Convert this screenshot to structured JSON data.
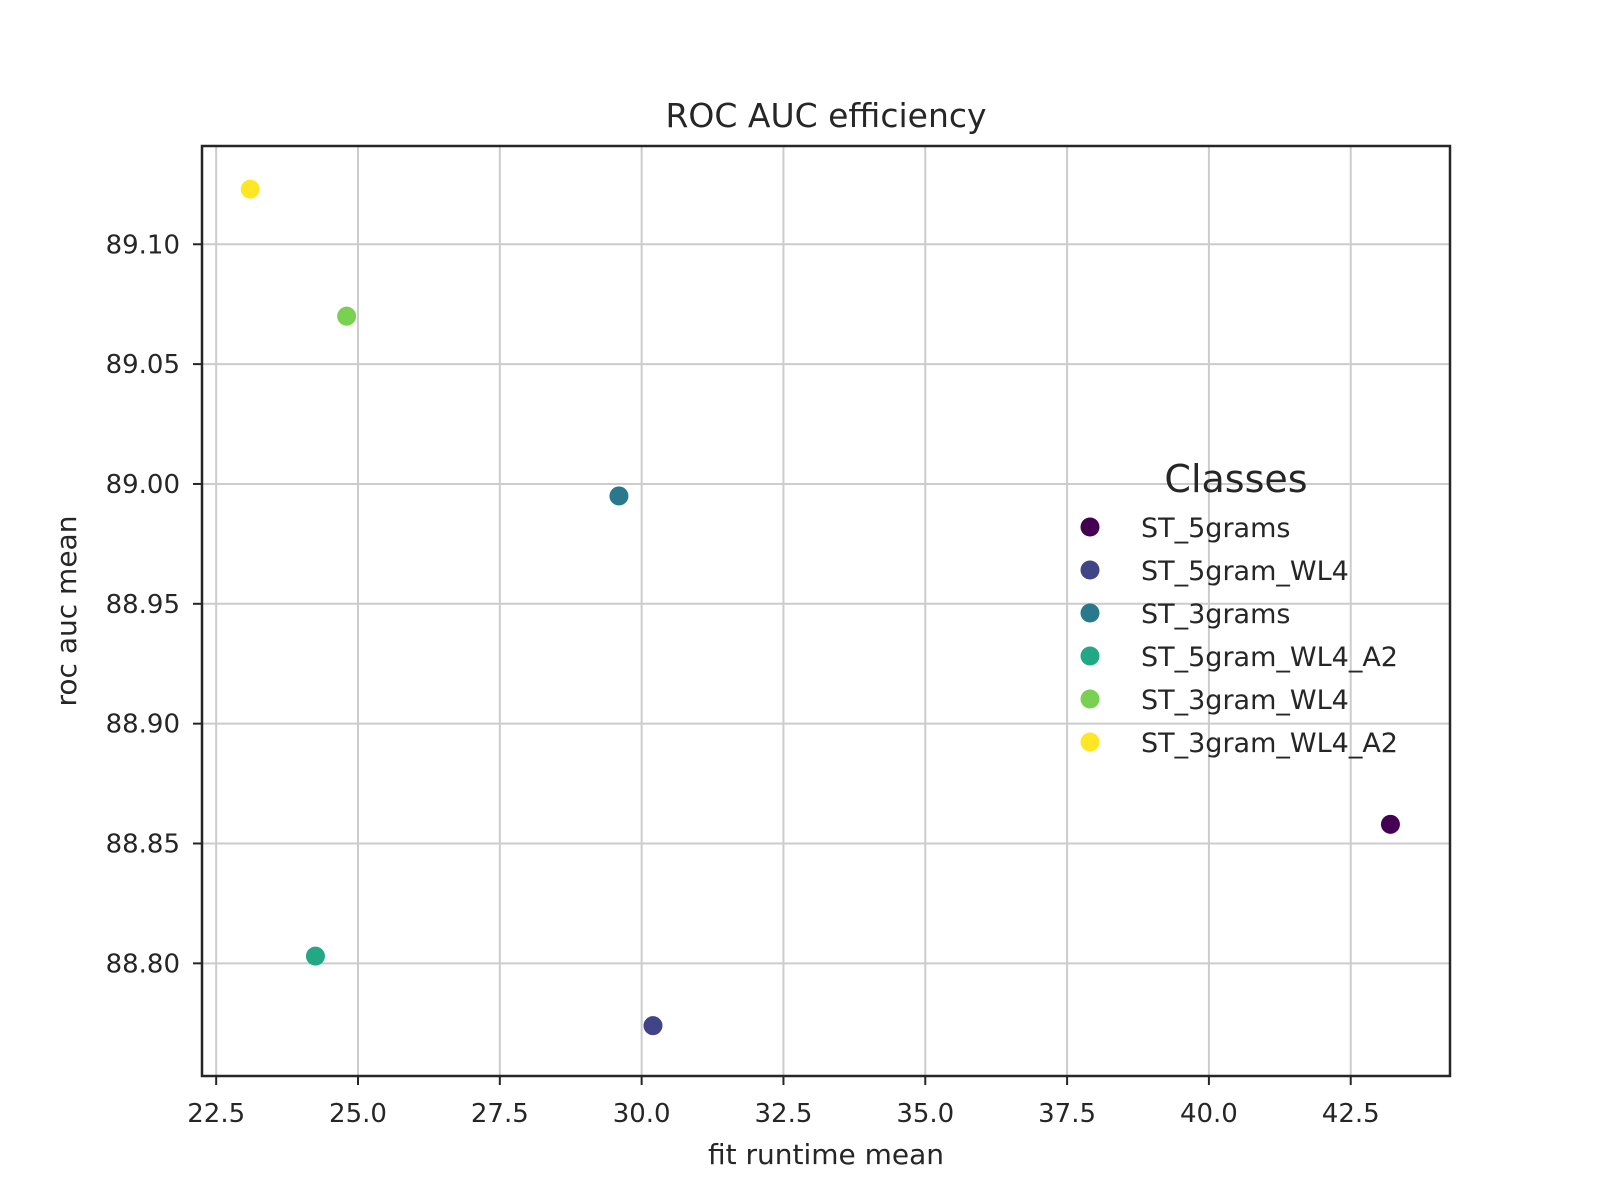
{
  "chart_data": {
    "type": "scatter",
    "title": "ROC AUC efficiency",
    "xlabel": "fit runtime mean",
    "ylabel": "roc auc mean",
    "xlim": [
      22.25,
      44.25
    ],
    "ylim": [
      88.753,
      89.141
    ],
    "xticks": [
      22.5,
      25.0,
      27.5,
      30.0,
      32.5,
      35.0,
      37.5,
      40.0,
      42.5
    ],
    "yticks": [
      88.8,
      88.85,
      88.9,
      88.95,
      89.0,
      89.05,
      89.1
    ],
    "grid": true,
    "legend": {
      "title": "Classes",
      "placement": "right"
    },
    "series": [
      {
        "name": "ST_5grams",
        "color": "#440154",
        "x": 43.2,
        "y": 88.858
      },
      {
        "name": "ST_5gram_WL4",
        "color": "#414487",
        "x": 30.2,
        "y": 88.774
      },
      {
        "name": "ST_3grams",
        "color": "#2a788e",
        "x": 29.6,
        "y": 88.995
      },
      {
        "name": "ST_5gram_WL4_A2",
        "color": "#22a884",
        "x": 24.25,
        "y": 88.803
      },
      {
        "name": "ST_3gram_WL4",
        "color": "#7ad151",
        "x": 24.8,
        "y": 89.07
      },
      {
        "name": "ST_3gram_WL4_A2",
        "color": "#fde725",
        "x": 23.1,
        "y": 89.123
      }
    ]
  }
}
